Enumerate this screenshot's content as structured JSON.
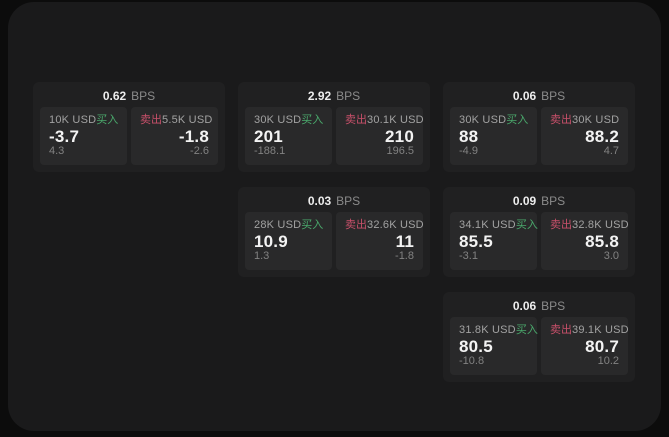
{
  "labels": {
    "bps_suffix": "BPS",
    "buy": "买入",
    "sell": "卖出"
  },
  "colors": {
    "bg_outer": "#0c0c0c",
    "bg_panel": "#1a1a1b",
    "bg_card": "#202021",
    "bg_subpanel": "#29292a",
    "buy_green": "#4aa96c",
    "sell_red": "#c8506a"
  },
  "cards": [
    {
      "bps": "0.62",
      "buy": {
        "notional": "10K USD",
        "value": "-3.7",
        "sub": "4.3"
      },
      "sell": {
        "notional": "5.5K USD",
        "value": "-1.8",
        "sub": "-2.6"
      }
    },
    {
      "bps": "2.92",
      "buy": {
        "notional": "30K USD",
        "value": "201",
        "sub": "-188.1"
      },
      "sell": {
        "notional": "30.1K USD",
        "value": "210",
        "sub": "196.5"
      }
    },
    {
      "bps": "0.06",
      "buy": {
        "notional": "30K USD",
        "value": "88",
        "sub": "-4.9"
      },
      "sell": {
        "notional": "30K USD",
        "value": "88.2",
        "sub": "4.7"
      }
    },
    {
      "bps": "0.03",
      "buy": {
        "notional": "28K USD",
        "value": "10.9",
        "sub": "1.3"
      },
      "sell": {
        "notional": "32.6K USD",
        "value": "11",
        "sub": "-1.8"
      }
    },
    {
      "bps": "0.09",
      "buy": {
        "notional": "34.1K USD",
        "value": "85.5",
        "sub": "-3.1"
      },
      "sell": {
        "notional": "32.8K USD",
        "value": "85.8",
        "sub": "3.0"
      }
    },
    {
      "bps": "0.06",
      "buy": {
        "notional": "31.8K USD",
        "value": "80.5",
        "sub": "-10.8"
      },
      "sell": {
        "notional": "39.1K USD",
        "value": "80.7",
        "sub": "10.2"
      }
    }
  ]
}
